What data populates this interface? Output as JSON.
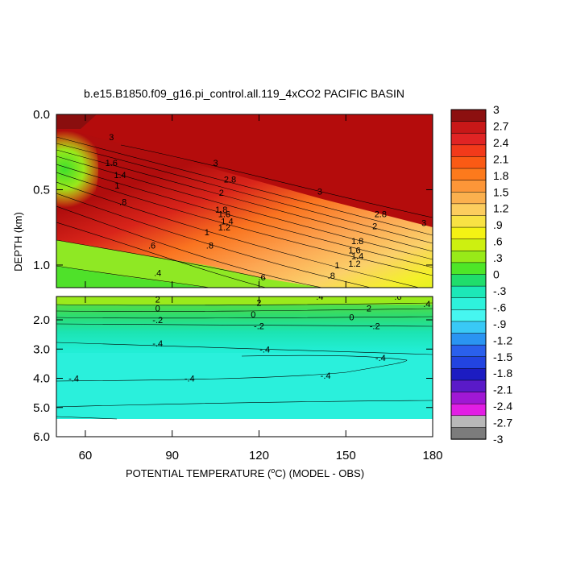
{
  "chart_data": {
    "type": "heatmap",
    "title": "b.e15.B1850.f09_g16.pi_control.all.119_4xCO2 PACIFIC BASIN",
    "xlabel_pre": "POTENTIAL TEMPERATURE (",
    "xlabel_deg": "o",
    "xlabel_post": "C) (MODEL - OBS)",
    "ylabel": "DEPTH (km)",
    "xlim": [
      50,
      180
    ],
    "x_ticks": [
      "60",
      "90",
      "120",
      "150",
      "180"
    ],
    "upper_panel": {
      "ylim": [
        0.0,
        1.15
      ],
      "y_ticks": [
        "0.0",
        "0.5",
        "1.0"
      ]
    },
    "lower_panel": {
      "ylim": [
        1.2,
        6.0
      ],
      "y_ticks": [
        "2.0",
        "3.0",
        "4.0",
        "5.0",
        "6.0"
      ]
    },
    "colorbar": {
      "levels": [
        "3",
        "2.7",
        "2.4",
        "2.1",
        "1.8",
        "1.5",
        "1.2",
        ".9",
        ".6",
        ".3",
        "0",
        "-.3",
        "-.6",
        "-.9",
        "-1.2",
        "-1.5",
        "-1.8",
        "-2.1",
        "-2.4",
        "-2.7",
        "-3"
      ],
      "colors": [
        "#8c1010",
        "#c81818",
        "#e02424",
        "#f23a1a",
        "#fa5a14",
        "#fd7a1c",
        "#fd9638",
        "#fbb04e",
        "#fccd5e",
        "#f8e244",
        "#f4f214",
        "#cdf010",
        "#98ea18",
        "#4ee628",
        "#20dd6c",
        "#1ce8b8",
        "#2ef2dc",
        "#46f6f0",
        "#39c9f6",
        "#2a94f2",
        "#2a60ec",
        "#2244e0",
        "#1c1cc2",
        "#5a1ac8",
        "#a018d4",
        "#e21ee4",
        "#b8b8b8",
        "#7c7c7c"
      ]
    },
    "contour_labels": {
      "upper": [
        {
          "x": 69,
          "y": 0.15,
          "text": "3"
        },
        {
          "x": 105,
          "y": 0.32,
          "text": "3"
        },
        {
          "x": 141,
          "y": 0.51,
          "text": "3"
        },
        {
          "x": 177,
          "y": 0.72,
          "text": "3"
        },
        {
          "x": 110,
          "y": 0.43,
          "text": "2.8"
        },
        {
          "x": 107,
          "y": 0.52,
          "text": "2"
        },
        {
          "x": 107,
          "y": 0.63,
          "text": "1.8"
        },
        {
          "x": 108,
          "y": 0.66,
          "text": "1.6"
        },
        {
          "x": 109,
          "y": 0.71,
          "text": "1.4"
        },
        {
          "x": 108,
          "y": 0.75,
          "text": "1.2"
        },
        {
          "x": 102,
          "y": 0.78,
          "text": "1"
        },
        {
          "x": 103,
          "y": 0.87,
          "text": ".8"
        },
        {
          "x": 162,
          "y": 0.66,
          "text": "2.8"
        },
        {
          "x": 160,
          "y": 0.74,
          "text": "2"
        },
        {
          "x": 154,
          "y": 0.84,
          "text": "1.8"
        },
        {
          "x": 153,
          "y": 0.9,
          "text": "1.6"
        },
        {
          "x": 154,
          "y": 0.94,
          "text": "1.4"
        },
        {
          "x": 153,
          "y": 0.99,
          "text": "1.2"
        },
        {
          "x": 147,
          "y": 1.0,
          "text": "1"
        },
        {
          "x": 145,
          "y": 1.07,
          "text": ".8"
        },
        {
          "x": 69,
          "y": 0.32,
          "text": "1.6"
        },
        {
          "x": 72,
          "y": 0.4,
          "text": "1.4"
        },
        {
          "x": 71,
          "y": 0.47,
          "text": "1"
        },
        {
          "x": 73,
          "y": 0.58,
          "text": ".8"
        },
        {
          "x": 83,
          "y": 0.87,
          "text": ".6"
        },
        {
          "x": 85,
          "y": 1.05,
          "text": ".4"
        },
        {
          "x": 121,
          "y": 1.08,
          "text": ".6"
        }
      ],
      "lower": [
        {
          "x": 85,
          "y": 1.3,
          "text": "2"
        },
        {
          "x": 85,
          "y": 1.6,
          "text": "0"
        },
        {
          "x": 85,
          "y": 2.0,
          "text": "-.2"
        },
        {
          "x": 85,
          "y": 2.8,
          "text": "-.4"
        },
        {
          "x": 120,
          "y": 1.4,
          "text": "2"
        },
        {
          "x": 118,
          "y": 1.8,
          "text": "0"
        },
        {
          "x": 120,
          "y": 2.2,
          "text": "-.2"
        },
        {
          "x": 122,
          "y": 3.0,
          "text": "-.4"
        },
        {
          "x": 141,
          "y": 1.2,
          "text": ".4"
        },
        {
          "x": 158,
          "y": 1.6,
          "text": "2"
        },
        {
          "x": 152,
          "y": 1.9,
          "text": "0"
        },
        {
          "x": 160,
          "y": 2.2,
          "text": "-.2"
        },
        {
          "x": 168,
          "y": 1.2,
          "text": ".6"
        },
        {
          "x": 178,
          "y": 1.45,
          "text": ".4"
        },
        {
          "x": 162,
          "y": 3.3,
          "text": "-.4"
        },
        {
          "x": 143,
          "y": 3.9,
          "text": "-.4"
        },
        {
          "x": 96,
          "y": 4.0,
          "text": "-.4"
        },
        {
          "x": 56,
          "y": 4.0,
          "text": "-.4"
        }
      ]
    }
  }
}
